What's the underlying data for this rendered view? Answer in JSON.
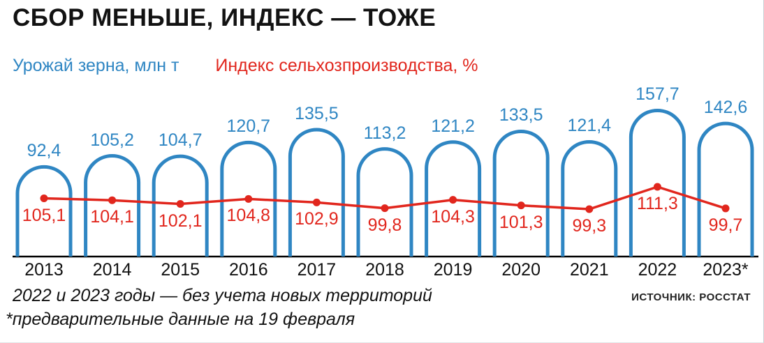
{
  "title": "СБОР МЕНЬШЕ, ИНДЕКС — ТОЖЕ",
  "legend": {
    "bars_label": "Урожай зерна, млн т",
    "line_label": "Индекс сельхозпроизводства, %"
  },
  "colors": {
    "bars": "#2f86c3",
    "line": "#e1261d",
    "axis": "#000000"
  },
  "chart_data": {
    "type": "combo",
    "categories": [
      "2013",
      "2014",
      "2015",
      "2016",
      "2017",
      "2018",
      "2019",
      "2020",
      "2021",
      "2022",
      "2023*"
    ],
    "series": [
      {
        "name": "Урожай зерна, млн т",
        "type": "bar",
        "color": "#2f86c3",
        "values": [
          92.4,
          105.2,
          104.7,
          120.7,
          135.5,
          113.2,
          121.2,
          133.5,
          121.4,
          157.7,
          142.6
        ],
        "labels": [
          "92,4",
          "105,2",
          "104,7",
          "120,7",
          "135,5",
          "113,2",
          "121,2",
          "133,5",
          "121,4",
          "157,7",
          "142,6"
        ]
      },
      {
        "name": "Индекс сельхозпроизводства, %",
        "type": "line",
        "color": "#e1261d",
        "values": [
          105.1,
          104.1,
          102.1,
          104.8,
          102.9,
          99.8,
          104.3,
          101.3,
          99.3,
          111.3,
          99.7
        ],
        "labels": [
          "105,1",
          "104,1",
          "102,1",
          "104,8",
          "102,9",
          "99,8",
          "104,3",
          "101,3",
          "99,3",
          "111,3",
          "99,7"
        ]
      }
    ],
    "xlabel": "",
    "ylabel": "",
    "grid": false,
    "legend_position": "top-left",
    "bar_style": "outlined rounded-top arches, unfilled",
    "line_style": "red polyline with point markers, value labels below points"
  },
  "footnotes": [
    "2022 и 2023 годы — без учета новых территорий",
    "*предварительные данные на 19 февраля"
  ],
  "source": "ИСТОЧНИК: РОССТАТ"
}
